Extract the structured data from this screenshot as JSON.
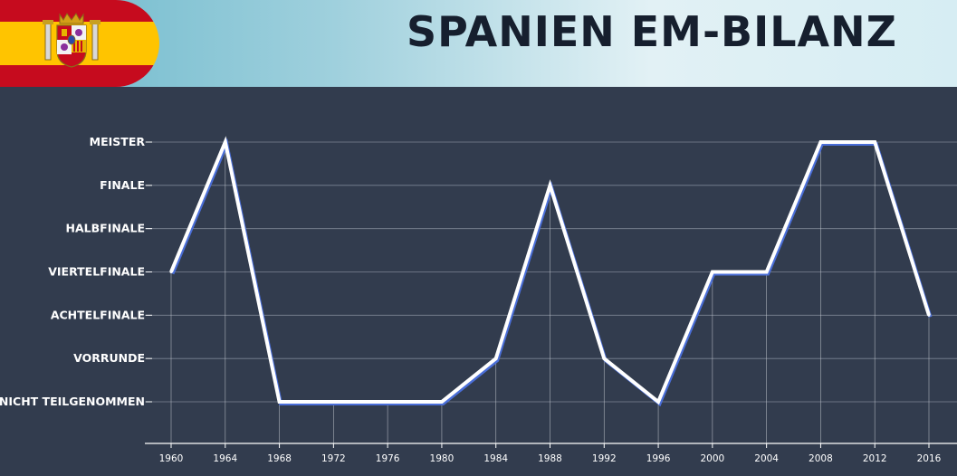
{
  "header": {
    "title": "Spanien EM-Bilanz",
    "flag_colors": {
      "red": "#c60b1e",
      "yellow": "#ffc400"
    },
    "flag_icon": "spain-coat-of-arms-icon"
  },
  "colors": {
    "background": "#323c4e",
    "grid": "#7d8594",
    "line": "#ffffff",
    "line_shadow": "#4a6ed8"
  },
  "chart_data": {
    "type": "line",
    "title": "Spanien EM-Bilanz",
    "xlabel": "",
    "ylabel": "",
    "categories": [
      "1960",
      "1964",
      "1968",
      "1972",
      "1976",
      "1980",
      "1984",
      "1988",
      "1992",
      "1996",
      "2000",
      "2004",
      "2008",
      "2012",
      "2016"
    ],
    "y_categories": [
      "Nicht teilgenommen",
      "Vorrunde",
      "Achtelfinale",
      "Viertelfinale",
      "Halbfinale",
      "Finale",
      "Meister"
    ],
    "series": [
      {
        "values": [
          "Viertelfinale",
          "Meister",
          "Nicht teilgenommen",
          "Nicht teilgenommen",
          "Nicht teilgenommen",
          "Nicht teilgenommen",
          "Vorrunde",
          "Finale",
          "Vorrunde",
          "Nicht teilgenommen",
          "Viertelfinale",
          "Viertelfinale",
          "Meister",
          "Meister",
          "Achtelfinale"
        ]
      }
    ],
    "grid": true
  }
}
